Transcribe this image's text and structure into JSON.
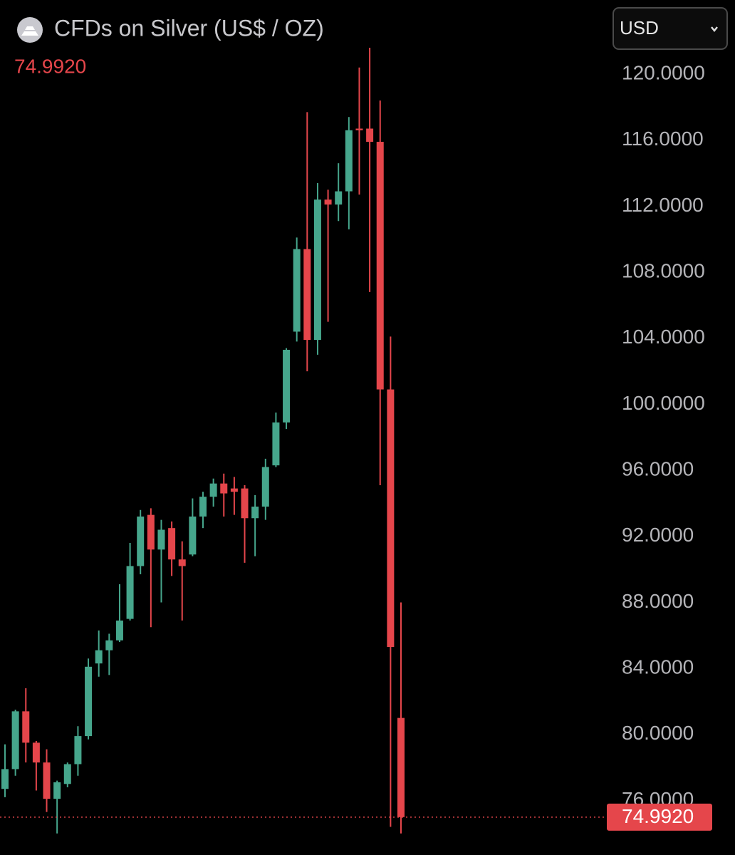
{
  "chart_data": {
    "type": "candlestick",
    "title": "CFDs on Silver (US$ / OZ)",
    "currency": "USD",
    "current_price": {
      "value": 74.992,
      "label": "74.9920"
    },
    "up_color": "#46a68c",
    "down_color": "#e5464b",
    "ylim": [
      74,
      122
    ],
    "yticks": [
      {
        "value": 76,
        "label": "76.0000"
      },
      {
        "value": 80,
        "label": "80.0000"
      },
      {
        "value": 84,
        "label": "84.0000"
      },
      {
        "value": 88,
        "label": "88.0000"
      },
      {
        "value": 92,
        "label": "92.0000"
      },
      {
        "value": 96,
        "label": "96.0000"
      },
      {
        "value": 100,
        "label": "100.0000"
      },
      {
        "value": 104,
        "label": "104.0000"
      },
      {
        "value": 108,
        "label": "108.0000"
      },
      {
        "value": 112,
        "label": "112.0000"
      },
      {
        "value": 116,
        "label": "116.0000"
      },
      {
        "value": 120,
        "label": "120.0000"
      }
    ],
    "open": [
      76.7,
      77.9,
      81.4,
      79.5,
      78.3,
      76.1,
      77.0,
      78.2,
      79.9,
      84.3,
      85.1,
      85.7,
      87.0,
      90.2,
      93.3,
      91.2,
      92.5,
      90.6,
      90.9,
      93.2,
      94.4,
      95.2,
      94.9,
      94.9,
      93.1,
      93.8,
      96.3,
      98.9,
      104.4,
      109.4,
      103.9,
      112.4,
      112.1,
      112.9,
      116.7,
      116.7,
      115.9,
      100.9,
      81.0
    ],
    "high": [
      79.4,
      81.5,
      82.8,
      79.6,
      79.1,
      77.2,
      78.3,
      80.5,
      84.6,
      86.3,
      86.1,
      89.1,
      91.6,
      93.6,
      93.7,
      93.0,
      92.9,
      91.7,
      94.3,
      94.7,
      95.5,
      95.8,
      95.6,
      95.1,
      94.5,
      96.7,
      99.5,
      103.4,
      110.1,
      117.7,
      113.4,
      113.0,
      114.6,
      117.4,
      120.4,
      121.6,
      118.4,
      104.1,
      88.0
    ],
    "low": [
      76.2,
      77.5,
      78.3,
      76.6,
      75.3,
      74.0,
      76.8,
      77.5,
      79.7,
      83.5,
      83.6,
      85.6,
      86.9,
      89.7,
      86.5,
      88.0,
      89.6,
      86.9,
      90.8,
      92.5,
      93.8,
      93.2,
      93.3,
      90.4,
      90.8,
      93.0,
      96.2,
      98.5,
      103.8,
      102.0,
      103.0,
      105.0,
      111.1,
      110.6,
      112.7,
      106.8,
      95.1,
      74.4,
      74.0
    ],
    "close": [
      77.9,
      81.4,
      79.5,
      78.3,
      76.1,
      77.1,
      78.2,
      79.9,
      84.1,
      85.1,
      85.7,
      86.9,
      90.2,
      93.2,
      91.2,
      92.4,
      90.6,
      90.2,
      93.2,
      94.4,
      95.2,
      94.6,
      94.7,
      93.1,
      93.8,
      96.2,
      98.9,
      103.3,
      109.4,
      103.9,
      112.4,
      112.1,
      112.9,
      116.6,
      116.6,
      115.9,
      100.9,
      85.3,
      74.992
    ]
  }
}
